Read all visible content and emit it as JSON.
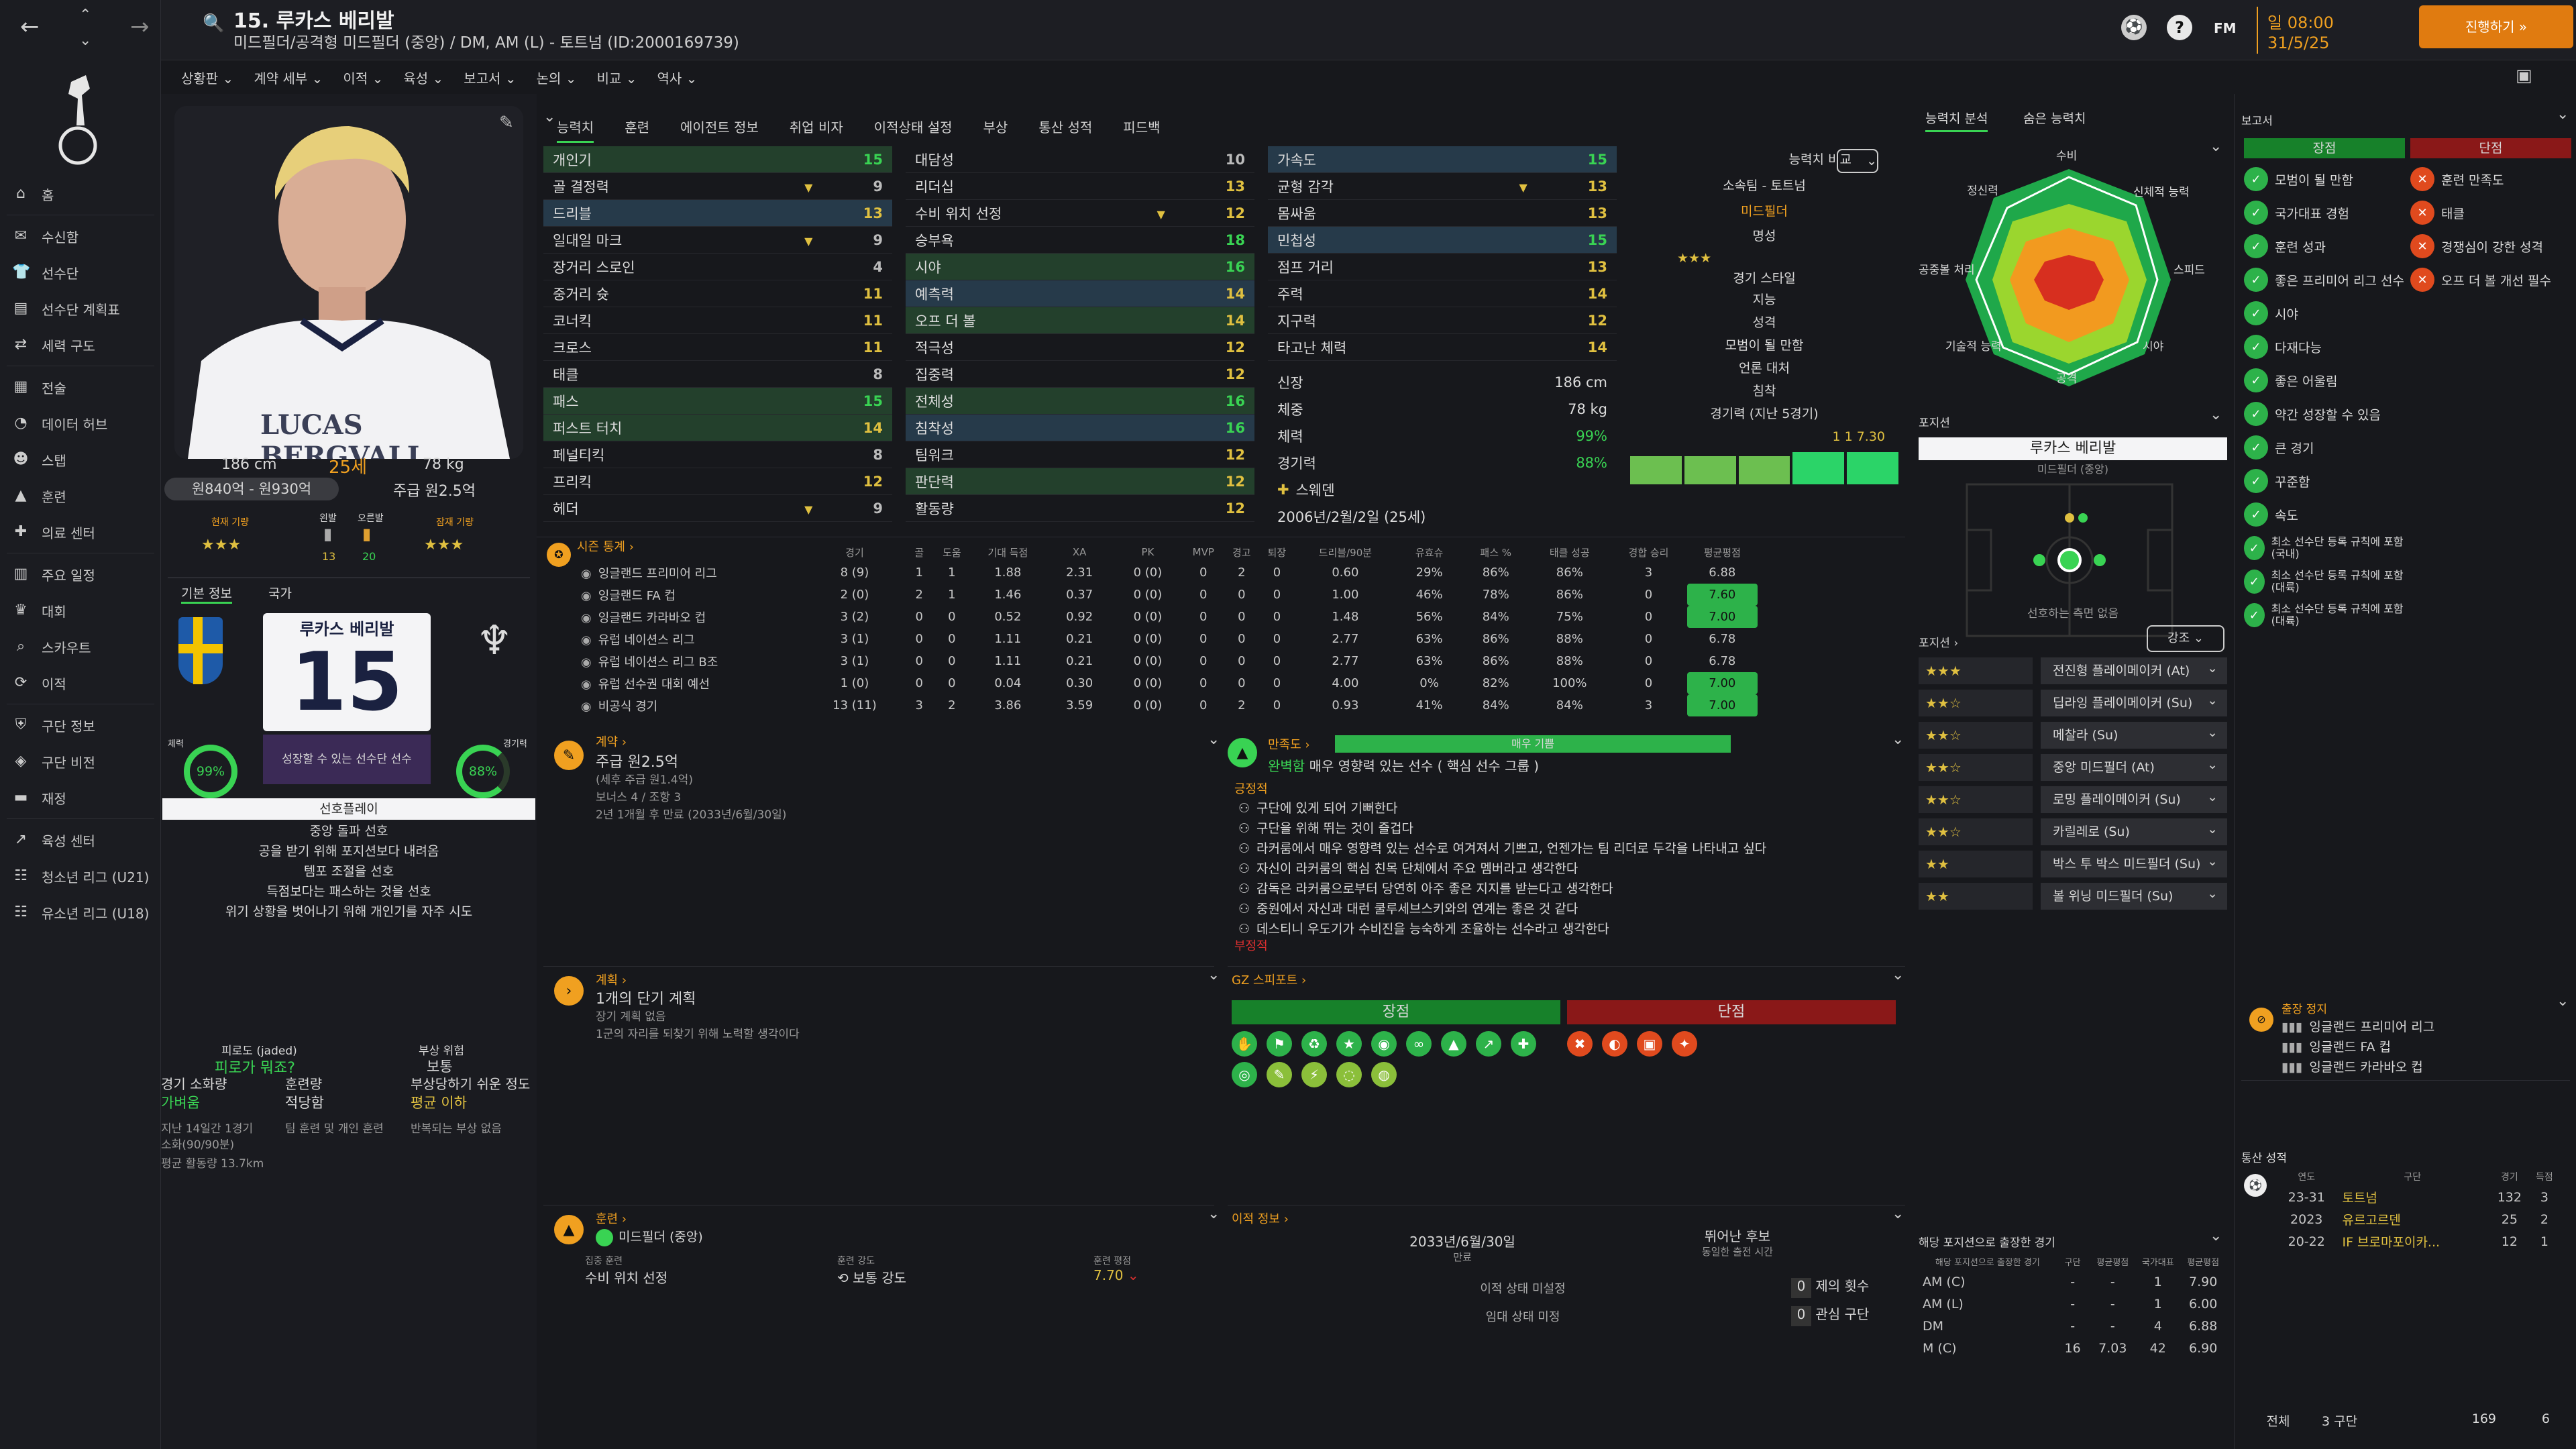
{
  "header": {
    "title": "15. 루카스 베리발",
    "subtitle": "미드필더/공격형 미드필더 (중앙) / DM, AM (L) - 토트넘 (ID:2000169739)",
    "time": "일 08:00",
    "date": "31/5/25",
    "continue_label": "진행하기",
    "fm_label": "FM"
  },
  "nav": {
    "items": [
      {
        "label": "홈",
        "icon": "home-icon"
      },
      {
        "label": "수신함",
        "icon": "inbox-icon"
      },
      {
        "label": "선수단",
        "icon": "shirt-icon"
      },
      {
        "label": "선수단 계획표",
        "icon": "planner-icon"
      },
      {
        "label": "세력 구도",
        "icon": "dynamics-icon"
      },
      {
        "label": "전술",
        "icon": "tactics-icon"
      },
      {
        "label": "데이터 허브",
        "icon": "data-icon"
      },
      {
        "label": "스탭",
        "icon": "staff-icon"
      },
      {
        "label": "훈련",
        "icon": "training-icon"
      },
      {
        "label": "의료 센터",
        "icon": "medical-icon"
      },
      {
        "label": "주요 일정",
        "icon": "calendar-icon"
      },
      {
        "label": "대회",
        "icon": "trophy-icon"
      },
      {
        "label": "스카우트",
        "icon": "scout-icon"
      },
      {
        "label": "이적",
        "icon": "transfer-icon"
      },
      {
        "label": "구단 정보",
        "icon": "club-icon"
      },
      {
        "label": "구단 비전",
        "icon": "vision-icon"
      },
      {
        "label": "재정",
        "icon": "finance-icon"
      },
      {
        "label": "육성 센터",
        "icon": "development-icon"
      },
      {
        "label": "청소년 리그 (U21)",
        "icon": "u21-icon"
      },
      {
        "label": "유소년 리그 (U18)",
        "icon": "u18-icon"
      }
    ]
  },
  "subnav": [
    "상황판",
    "계약 세부",
    "이적",
    "육성",
    "보고서",
    "논의",
    "비교",
    "역사"
  ],
  "profile": {
    "name_on_shirt": "LUCAS BERGVALL",
    "height": "186 cm",
    "age": "25세",
    "weight": "78 kg",
    "value": "원840억 - 원930억",
    "wage": "주급 원2.5억",
    "current_ability_label": "현재 기량",
    "left_foot_label": "왼발",
    "right_foot_label": "오른발",
    "left_foot": "13",
    "right_foot": "20",
    "potential_label": "잠재 기량",
    "current_stars": "★★★",
    "potential_stars": "★★★",
    "tab_basic": "기본 정보",
    "tab_nation": "국가",
    "card_name": "루카스 베리발",
    "card_number": "15",
    "fitness_label": "체력",
    "fitness": "99%",
    "sharpness_label": "경기력",
    "sharpness": "88%",
    "growth_label": "성장할 수 있는 선수단 선수",
    "playstyle_label": "선호플레이",
    "playstyles": [
      "중앙 돌파 선호",
      "공을 받기 위해 포지션보다 내려옴",
      "템포 조절을 선호",
      "득점보다는 패스하는 것을 선호",
      "위기 상황을 벗어나기 위해 개인기를 자주 시도"
    ],
    "fatigue_label": "피로도 (jaded)",
    "fatigue_link": "피로가 뭐죠?",
    "injury_risk_label": "부상 위험",
    "injury_risk": "보통",
    "match_load_label": "경기 소화량",
    "match_load": "가벼움",
    "training_load_label": "훈련량",
    "training_load": "적당함",
    "injury_prone_label": "부상당하기 쉬운 정도",
    "injury_prone": "평균 이하",
    "load_note": "지난 14일간 1경기",
    "load_note2": "소화(90/90분)",
    "training_note": "팀 훈련 및 개인 훈련",
    "injury_note": "반복되는 부상 없음",
    "distance": "평균 활동량 13.7km"
  },
  "tabs": [
    "능력치",
    "훈련",
    "에이전트 정보",
    "취업 비자",
    "이적상태 설정",
    "부상",
    "통산 성적",
    "피드백"
  ],
  "attributes": {
    "technical": [
      {
        "name": "개인기",
        "val": "15",
        "hi": "g"
      },
      {
        "name": "골 결정력",
        "val": "9",
        "arrow": true
      },
      {
        "name": "드리블",
        "val": "13",
        "hi": "b"
      },
      {
        "name": "일대일 마크",
        "val": "9",
        "arrow": true
      },
      {
        "name": "장거리 스로인",
        "val": "4"
      },
      {
        "name": "중거리 슛",
        "val": "11"
      },
      {
        "name": "코너킥",
        "val": "11"
      },
      {
        "name": "크로스",
        "val": "11"
      },
      {
        "name": "태클",
        "val": "8"
      },
      {
        "name": "패스",
        "val": "15",
        "hi": "g"
      },
      {
        "name": "퍼스트 터치",
        "val": "14",
        "hi": "g"
      },
      {
        "name": "페널티킥",
        "val": "8"
      },
      {
        "name": "프리킥",
        "val": "12"
      },
      {
        "name": "헤더",
        "val": "9",
        "arrow": true
      }
    ],
    "mental": [
      {
        "name": "대담성",
        "val": "10"
      },
      {
        "name": "리더십",
        "val": "13"
      },
      {
        "name": "수비 위치 선정",
        "val": "12",
        "arrow": true
      },
      {
        "name": "승부욕",
        "val": "18"
      },
      {
        "name": "시야",
        "val": "16",
        "hi": "g"
      },
      {
        "name": "예측력",
        "val": "14",
        "hi": "b"
      },
      {
        "name": "오프 더 볼",
        "val": "14",
        "hi": "g"
      },
      {
        "name": "적극성",
        "val": "12"
      },
      {
        "name": "집중력",
        "val": "12"
      },
      {
        "name": "전체성",
        "val": "16",
        "hi": "g"
      },
      {
        "name": "침착성",
        "val": "16",
        "hi": "b"
      },
      {
        "name": "팀워크",
        "val": "12"
      },
      {
        "name": "판단력",
        "val": "12",
        "hi": "g"
      },
      {
        "name": "활동량",
        "val": "12"
      }
    ],
    "physical": [
      {
        "name": "가속도",
        "val": "15",
        "hi": "b"
      },
      {
        "name": "균형 감각",
        "val": "13",
        "arrow": true
      },
      {
        "name": "몸싸움",
        "val": "13"
      },
      {
        "name": "민첩성",
        "val": "15",
        "hi": "b"
      },
      {
        "name": "점프 거리",
        "val": "13"
      },
      {
        "name": "주력",
        "val": "14"
      },
      {
        "name": "지구력",
        "val": "12"
      },
      {
        "name": "타고난 체력",
        "val": "14"
      }
    ]
  },
  "info": {
    "compare_label": "능력치 비교",
    "club_label": "소속팀 - 토트넘",
    "position": "미드필더",
    "reputation_label": "명성",
    "reputation": "★★★",
    "play_style_label": "경기 스타일",
    "play_style": "지능",
    "personality_label": "성격",
    "personality": "모범이 될 만함",
    "media_label": "언론 대처",
    "media": "침착",
    "form_label": "경기력 (지난 5경기)",
    "height_label": "신장",
    "height": "186 cm",
    "weight_label": "체중",
    "weight": "78 kg",
    "fitness_label": "체력",
    "fitness": "99%",
    "sharp_label": "경기력",
    "sharp": "88%",
    "nation": "스웨덴",
    "dob": "2006년/2월/2일 (25세)",
    "form_summary": "1   1   7.30",
    "form": [
      2,
      2,
      2,
      3,
      3
    ]
  },
  "season_stats": {
    "title": "시즌 통계",
    "headers": [
      "경기",
      "골",
      "도움",
      "기대 득점",
      "XA",
      "PK",
      "MVP",
      "경고",
      "퇴장",
      "드리블/90분",
      "유효슈",
      "패스 %",
      "태클 성공",
      "경합 승리",
      "평균평점"
    ],
    "rows": [
      {
        "comp": "잉글랜드 프리미어 리그",
        "v": [
          "8 (9)",
          "1",
          "1",
          "1.88",
          "2.31",
          "0 (0)",
          "0",
          "2",
          "0",
          "0.60",
          "29%",
          "86%",
          "86%",
          "3",
          "6.88"
        ]
      },
      {
        "comp": "잉글랜드 FA 컵",
        "v": [
          "2 (0)",
          "2",
          "1",
          "1.46",
          "0.37",
          "0 (0)",
          "0",
          "0",
          "0",
          "1.00",
          "46%",
          "78%",
          "86%",
          "0",
          "7.60"
        ]
      },
      {
        "comp": "잉글랜드 카라바오 컵",
        "v": [
          "3 (2)",
          "0",
          "0",
          "0.52",
          "0.92",
          "0 (0)",
          "0",
          "0",
          "0",
          "1.48",
          "56%",
          "84%",
          "75%",
          "0",
          "7.00"
        ]
      },
      {
        "comp": "유럽 네이션스 리그",
        "v": [
          "3 (1)",
          "0",
          "0",
          "1.11",
          "0.21",
          "0 (0)",
          "0",
          "0",
          "0",
          "2.77",
          "63%",
          "86%",
          "88%",
          "0",
          "6.78"
        ]
      },
      {
        "comp": "유럽 네이션스 리그 B조",
        "v": [
          "3 (1)",
          "0",
          "0",
          "1.11",
          "0.21",
          "0 (0)",
          "0",
          "0",
          "0",
          "2.77",
          "63%",
          "86%",
          "88%",
          "0",
          "6.78"
        ]
      },
      {
        "comp": "유럽 선수권 대회 예선",
        "v": [
          "1 (0)",
          "0",
          "0",
          "0.04",
          "0.30",
          "0 (0)",
          "0",
          "0",
          "0",
          "4.00",
          "0%",
          "82%",
          "100%",
          "0",
          "7.00"
        ]
      },
      {
        "comp": "비공식 경기",
        "v": [
          "13 (11)",
          "3",
          "2",
          "3.86",
          "3.59",
          "0 (0)",
          "0",
          "2",
          "0",
          "0.93",
          "41%",
          "84%",
          "84%",
          "3",
          "7.00"
        ]
      }
    ]
  },
  "contract": {
    "title": "계약",
    "wage": "주급 원2.5억",
    "wage_note": "(세후 주급 원1.4억)",
    "bonus": "보너스 4 / 조항 3",
    "expiry": "2년 1개월 후 만료 (2033년/6월/30일)"
  },
  "happiness": {
    "title": "만족도",
    "level": "매우 기쁨",
    "status": "완벽함",
    "status_text": "매우 영향력 있는 선수 ( 핵심 선수 그룹 )",
    "positive_label": "긍정적",
    "positives": [
      "구단에 있게 되어 기뻐한다",
      "구단을 위해 뛰는 것이 즐겁다",
      "라커룸에서 매우 영향력 있는 선수로 여겨져서 기쁘고, 언젠가는 팀 리더로 두각을 나타내고 싶다",
      "자신이 라커룸의 핵심 친목 단체에서 주요 멤버라고 생각한다",
      "감독은 라커룸으로부터 당연히 아주 좋은 지지를 받는다고 생각한다",
      "중원에서 자신과 대런 쿨루세브스키와의 연계는 좋은 것 같다",
      "데스티니 우도기가 수비진을 능숙하게 조율하는 선수라고 생각한다"
    ],
    "negative_label": "부정적"
  },
  "plan": {
    "title": "계획",
    "headline": "1개의 단기 계획",
    "long": "장기 계획 없음",
    "note": "1군의 자리를 되찾기 위해 노력할 생각이다"
  },
  "scout": {
    "title": "스피포트",
    "pros_label": "장점",
    "cons_label": "단점"
  },
  "training": {
    "title": "훈련",
    "role": "미드필더 (중앙)",
    "focus_label": "집중 훈련",
    "focus": "수비 위치 선정",
    "intensity_label": "훈련 강도",
    "intensity": "보통 강도",
    "rating_label": "훈련 평점",
    "rating": "7.70"
  },
  "transfer": {
    "title": "이적 정보",
    "date": "2033년/6월/30일",
    "date_label": "만료",
    "release_label": "뛰어난 후보",
    "release_note": "동일한 출전 시간",
    "status1": "이적 상태 미설정",
    "status2": "임대 상태 미정",
    "bids_label": "제의 횟수",
    "bids": "0",
    "int_label": "관심 구단",
    "int": "0"
  },
  "right_panel": {
    "tab1": "능력치 분석",
    "tab2": "숨은 능력치",
    "radar_labels": [
      "수비",
      "신체적 능력",
      "스피드",
      "시야",
      "공격",
      "기술적 능력",
      "공중볼 처리",
      "정신력"
    ],
    "position_title": "포지션",
    "player_name": "루카스 베리발",
    "player_role": "미드필더 (중앙)",
    "pitch_caption": "선호하는 측면 없음",
    "roles_label": "포지션",
    "strength_label": "강조",
    "roles": [
      {
        "stars": "★★★",
        "role": "전진형 플레이메이커 (At)"
      },
      {
        "stars": "★★☆",
        "role": "딥라잉 플레이메이커 (Su)"
      },
      {
        "stars": "★★☆",
        "role": "메찰라 (Su)"
      },
      {
        "stars": "★★☆",
        "role": "중앙 미드필더 (At)"
      },
      {
        "stars": "★★☆",
        "role": "로밍 플레이메이커 (Su)"
      },
      {
        "stars": "★★☆",
        "role": "카릴레로 (Su)"
      },
      {
        "stars": "★★",
        "role": "박스 투 박스 미드필더 (Su)"
      },
      {
        "stars": "★★",
        "role": "볼 위닝 미드필더 (Su)"
      }
    ],
    "played_title": "해당 포지션으로 출장한 경기",
    "played_headers": [
      "해당 포지션으로 출장한 경기",
      "구단",
      "평균평점",
      "국가대표",
      "평균평점"
    ],
    "played": [
      {
        "pos": "AM (C)",
        "a": "-",
        "b": "-",
        "c": "1",
        "d": "7.90"
      },
      {
        "pos": "AM (L)",
        "a": "-",
        "b": "-",
        "c": "1",
        "d": "6.00"
      },
      {
        "pos": "DM",
        "a": "-",
        "b": "-",
        "c": "4",
        "d": "6.88"
      },
      {
        "pos": "M (C)",
        "a": "16",
        "b": "7.03",
        "c": "42",
        "d": "6.90"
      }
    ]
  },
  "report": {
    "title": "보고서",
    "pros_label": "장점",
    "cons_label": "단점",
    "pros": [
      "모범이 될 만함",
      "국가대표 경험",
      "훈련 성과",
      "좋은 프리미어 리그 선수",
      "시야",
      "다재다능",
      "좋은 어울림",
      "약간 성장할 수 있음",
      "큰 경기",
      "꾸준함",
      "속도",
      "최소 선수단 등록 규칙에 포함(국내)",
      "최소 선수단 등록 규칙에 포함(대륙)",
      "최소 선수단 등록 규칙에 포함(대륙)"
    ],
    "cons": [
      "훈련 만족도",
      "태클",
      "경쟁심이 강한 성격",
      "오프 더 볼 개선 필수"
    ],
    "suspension_title": "출장 정지",
    "suspensions": [
      "잉글랜드 프리미어 리그",
      "잉글랜드 FA 컵",
      "잉글랜드 카라바오 컵"
    ],
    "career_title": "통산 성적",
    "career_headers": [
      "연도",
      "구단",
      "경기",
      "득점"
    ],
    "career": [
      {
        "year": "23-31",
        "club": "토트넘",
        "apps": "132",
        "goals": "3"
      },
      {
        "year": "2023",
        "club": "유르고르덴",
        "apps": "25",
        "goals": "2"
      },
      {
        "year": "20-22",
        "club": "IF 브로마포이카...",
        "apps": "12",
        "goals": "1"
      }
    ],
    "total_label": "전체",
    "total_clubs": "3 구단",
    "total_apps": "169",
    "total_goals": "6"
  }
}
